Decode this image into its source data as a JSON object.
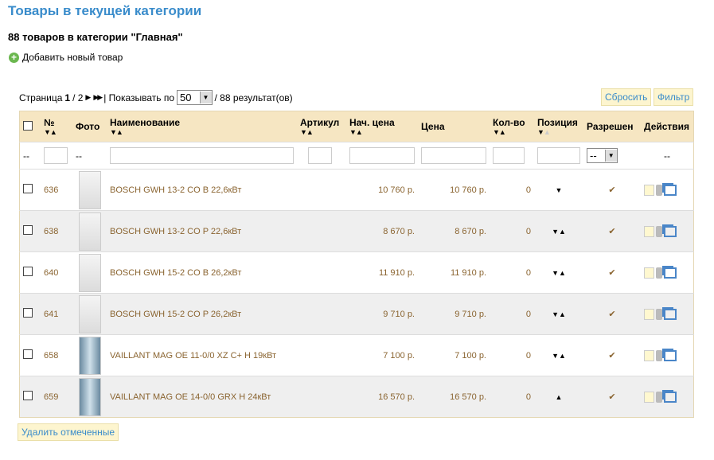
{
  "title": "Товары в текущей категории",
  "subtitle": "88 товаров в категории \"Главная\"",
  "add_label": "Добавить новый товар",
  "pager": {
    "page_label": "Страница",
    "current": "1",
    "total": "/ 2",
    "show_label": "| Показывать по",
    "per_page": "50",
    "results": "/ 88 результат(ов)"
  },
  "buttons": {
    "reset": "Сбросить",
    "filter": "Фильтр",
    "delete_checked": "Удалить отмеченные"
  },
  "columns": [
    "№",
    "Фото",
    "Наименование",
    "Артикул",
    "Нач. цена",
    "Цена",
    "Кол-во",
    "Позиция",
    "Разрешен",
    "Действия"
  ],
  "filter": {
    "dash": "--",
    "allowed_value": "--"
  },
  "rows": [
    {
      "id": "636",
      "name": "BOSCH GWH 13-2 CO B 22,6кВт",
      "start_price": "10 760 р.",
      "price": "10 760 р.",
      "qty": "0",
      "pos": "▼",
      "photo": "bosch"
    },
    {
      "id": "638",
      "name": "BOSCH GWH 13-2 CO P 22,6кВт",
      "start_price": "8 670 р.",
      "price": "8 670 р.",
      "qty": "0",
      "pos": "▼▲",
      "photo": "bosch"
    },
    {
      "id": "640",
      "name": "BOSCH GWH 15-2 CO B 26,2кВт",
      "start_price": "11 910 р.",
      "price": "11 910 р.",
      "qty": "0",
      "pos": "▼▲",
      "photo": "bosch"
    },
    {
      "id": "641",
      "name": "BOSCH GWH 15-2 CO P 26,2кВт",
      "start_price": "9 710 р.",
      "price": "9 710 р.",
      "qty": "0",
      "pos": "▼▲",
      "photo": "bosch"
    },
    {
      "id": "658",
      "name": "VAILLANT MAG OE 11-0/0 XZ C+ H 19кВт",
      "start_price": "7 100 р.",
      "price": "7 100 р.",
      "qty": "0",
      "pos": "▼▲",
      "photo": "vaillant"
    },
    {
      "id": "659",
      "name": "VAILLANT MAG OE 14-0/0 GRX H 24кВт",
      "start_price": "16 570 р.",
      "price": "16 570 р.",
      "qty": "0",
      "pos": "▲",
      "photo": "vaillant"
    }
  ],
  "colors": {
    "title": "#3a8ccb",
    "header_bg": "#f6e6c2",
    "link": "#8a6430",
    "ok": "#5bb04a"
  }
}
